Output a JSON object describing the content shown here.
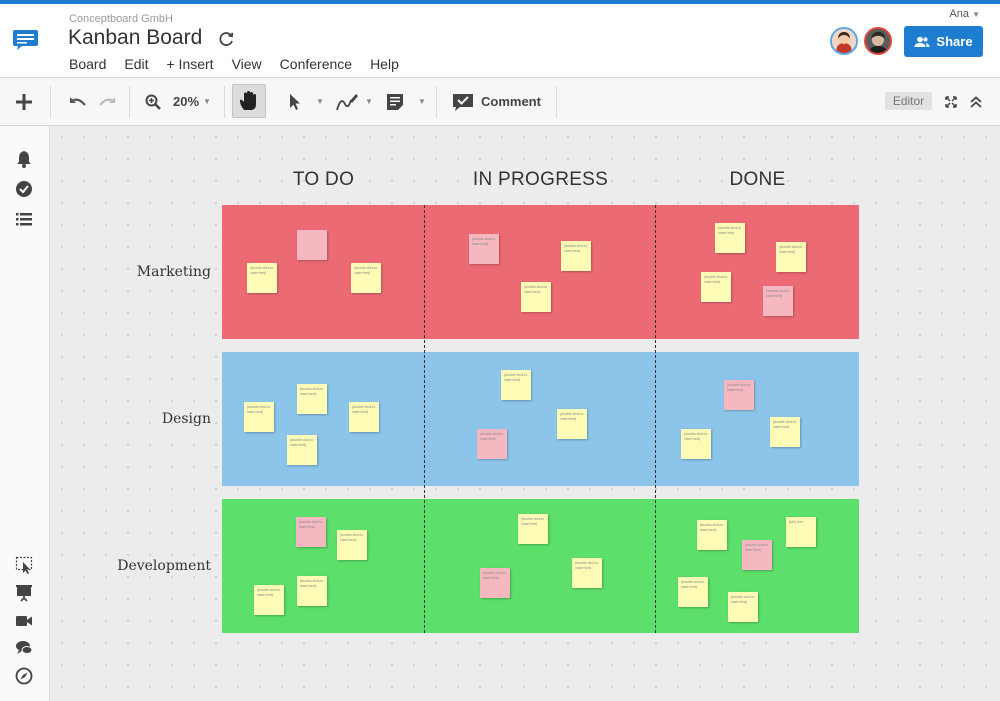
{
  "header": {
    "company": "Conceptboard GmbH",
    "title": "Kanban Board",
    "menu": [
      "Board",
      "Edit",
      "+ Insert",
      "View",
      "Conference",
      "Help"
    ],
    "user_name": "Ana",
    "share_label": "Share"
  },
  "toolbar": {
    "zoom": "20%",
    "comment_label": "Comment",
    "mode_badge": "Editor"
  },
  "board": {
    "columns": [
      "TO DO",
      "IN PROGRESS",
      "DONE"
    ],
    "rows": [
      {
        "label": "Marketing",
        "color": "#ec6a74"
      },
      {
        "label": "Design",
        "color": "#8cc4ea"
      },
      {
        "label": "Development",
        "color": "#5ddf6b"
      }
    ],
    "note_text": "(double click to insert text)",
    "note_text_alt": "(sth) text"
  },
  "colors": {
    "accent": "#1e7dd0",
    "note_yellow": "#fdfcb6",
    "note_pink": "#f5b8c0"
  }
}
